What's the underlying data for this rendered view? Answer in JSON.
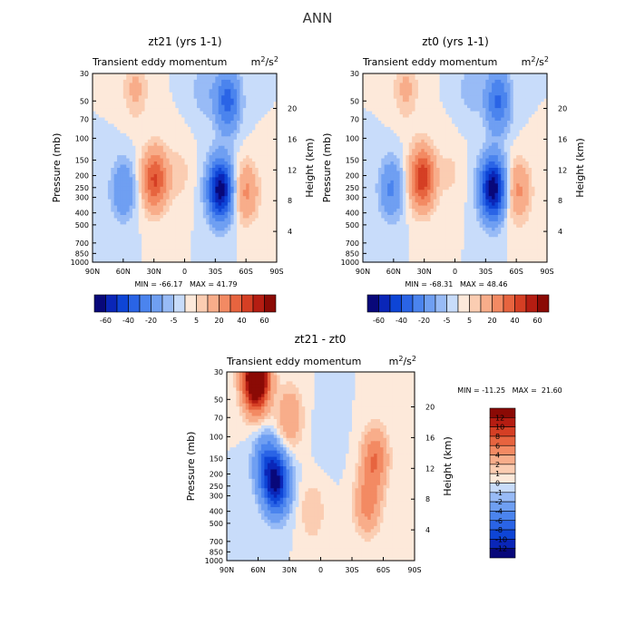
{
  "figure": {
    "title": "ANN"
  },
  "chart_data": [
    {
      "type": "heatmap",
      "title": "zt21 (yrs 1-1)",
      "subtitle": "Transient eddy momentum",
      "units": "m²/s²",
      "xlabel": "",
      "ylabel": "Pressure (mb)",
      "ylabel_right": "Height (km)",
      "x_ticks": [
        "90N",
        "60N",
        "30N",
        "0",
        "30S",
        "60S",
        "90S"
      ],
      "y_ticks": [
        30,
        50,
        70,
        100,
        150,
        200,
        250,
        300,
        400,
        500,
        700,
        850,
        1000
      ],
      "y_ticks_right": [
        4,
        8,
        12,
        16,
        20
      ],
      "stats_text": "MIN = -66.17   MAX = 41.79",
      "min": -66.17,
      "max": 41.79,
      "colorbar_labels": [
        "-60",
        "-40",
        "-20",
        "-5",
        "5",
        "20",
        "40",
        "60"
      ],
      "colorbar_levels": [
        -70,
        -60,
        -50,
        -40,
        -30,
        -20,
        -10,
        -5,
        0,
        5,
        10,
        20,
        30,
        40,
        50,
        60,
        70
      ],
      "features": [
        {
          "lat": 29,
          "p": 215,
          "value": 42
        },
        {
          "lat": -35,
          "p": 260,
          "value": -66
        },
        {
          "lat": 60,
          "p": 260,
          "value": -20
        },
        {
          "lat": -60,
          "p": 270,
          "value": 22
        },
        {
          "lat": 5,
          "p": 190,
          "value": 7
        },
        {
          "lat": 48,
          "p": 40,
          "value": 12
        },
        {
          "lat": -18,
          "p": 40,
          "value": -8
        },
        {
          "lat": -42,
          "p": 50,
          "value": -35
        }
      ]
    },
    {
      "type": "heatmap",
      "title": "zt0 (yrs 1-1)",
      "subtitle": "Transient eddy momentum",
      "units": "m²/s²",
      "xlabel": "",
      "ylabel": "Pressure (mb)",
      "ylabel_right": "Height (km)",
      "x_ticks": [
        "90N",
        "60N",
        "30N",
        "0",
        "30S",
        "60S",
        "90S"
      ],
      "y_ticks": [
        30,
        50,
        70,
        100,
        150,
        200,
        250,
        300,
        400,
        500,
        700,
        850,
        1000
      ],
      "y_ticks_right": [
        4,
        8,
        12,
        16,
        20
      ],
      "stats_text": "MIN = -68.31   MAX = 48.46",
      "min": -68.31,
      "max": 48.46,
      "colorbar_labels": [
        "-60",
        "-40",
        "-20",
        "-5",
        "5",
        "20",
        "40",
        "60"
      ],
      "colorbar_levels": [
        -70,
        -60,
        -50,
        -40,
        -30,
        -20,
        -10,
        -5,
        0,
        5,
        10,
        20,
        30,
        40,
        50,
        60,
        70
      ],
      "features": [
        {
          "lat": 32,
          "p": 210,
          "value": 48
        },
        {
          "lat": -37,
          "p": 255,
          "value": -68
        },
        {
          "lat": 62,
          "p": 255,
          "value": -22
        },
        {
          "lat": -62,
          "p": 265,
          "value": 22
        },
        {
          "lat": 5,
          "p": 190,
          "value": 6
        },
        {
          "lat": 48,
          "p": 40,
          "value": 12
        },
        {
          "lat": -15,
          "p": 40,
          "value": -8
        },
        {
          "lat": -42,
          "p": 50,
          "value": -32
        }
      ]
    },
    {
      "type": "heatmap",
      "title": "zt21 - zt0",
      "subtitle": "Transient eddy momentum",
      "units": "m²/s²",
      "xlabel": "",
      "ylabel": "Pressure (mb)",
      "ylabel_right": "Height (km)",
      "x_ticks": [
        "90N",
        "60N",
        "30N",
        "0",
        "30S",
        "60S",
        "90S"
      ],
      "y_ticks": [
        30,
        50,
        70,
        100,
        150,
        200,
        250,
        300,
        400,
        500,
        700,
        850,
        1000
      ],
      "y_ticks_right": [
        4,
        8,
        12,
        16,
        20
      ],
      "stats_text": "MIN = -11.25   MAX =  21.60",
      "min": -11.25,
      "max": 21.6,
      "colorbar_labels": [
        "12",
        "10",
        "8",
        "6",
        "4",
        "2",
        "1",
        "0",
        "-1",
        "-2",
        "-4",
        "-6",
        "-8",
        "-10",
        "-12"
      ],
      "colorbar_levels": [
        -14,
        -12,
        -10,
        -8,
        -6,
        -4,
        -2,
        -1,
        0,
        1,
        2,
        4,
        6,
        8,
        10,
        12,
        14
      ],
      "features": [
        {
          "lat": 62,
          "p": 34,
          "value": 20
        },
        {
          "lat": 42,
          "p": 240,
          "value": -11
        },
        {
          "lat": 52,
          "p": 170,
          "value": -6
        },
        {
          "lat": -52,
          "p": 150,
          "value": 6
        },
        {
          "lat": -45,
          "p": 350,
          "value": 5
        },
        {
          "lat": 8,
          "p": 400,
          "value": 2
        },
        {
          "lat": -8,
          "p": 90,
          "value": -1
        },
        {
          "lat": 30,
          "p": 70,
          "value": 4
        }
      ]
    }
  ]
}
